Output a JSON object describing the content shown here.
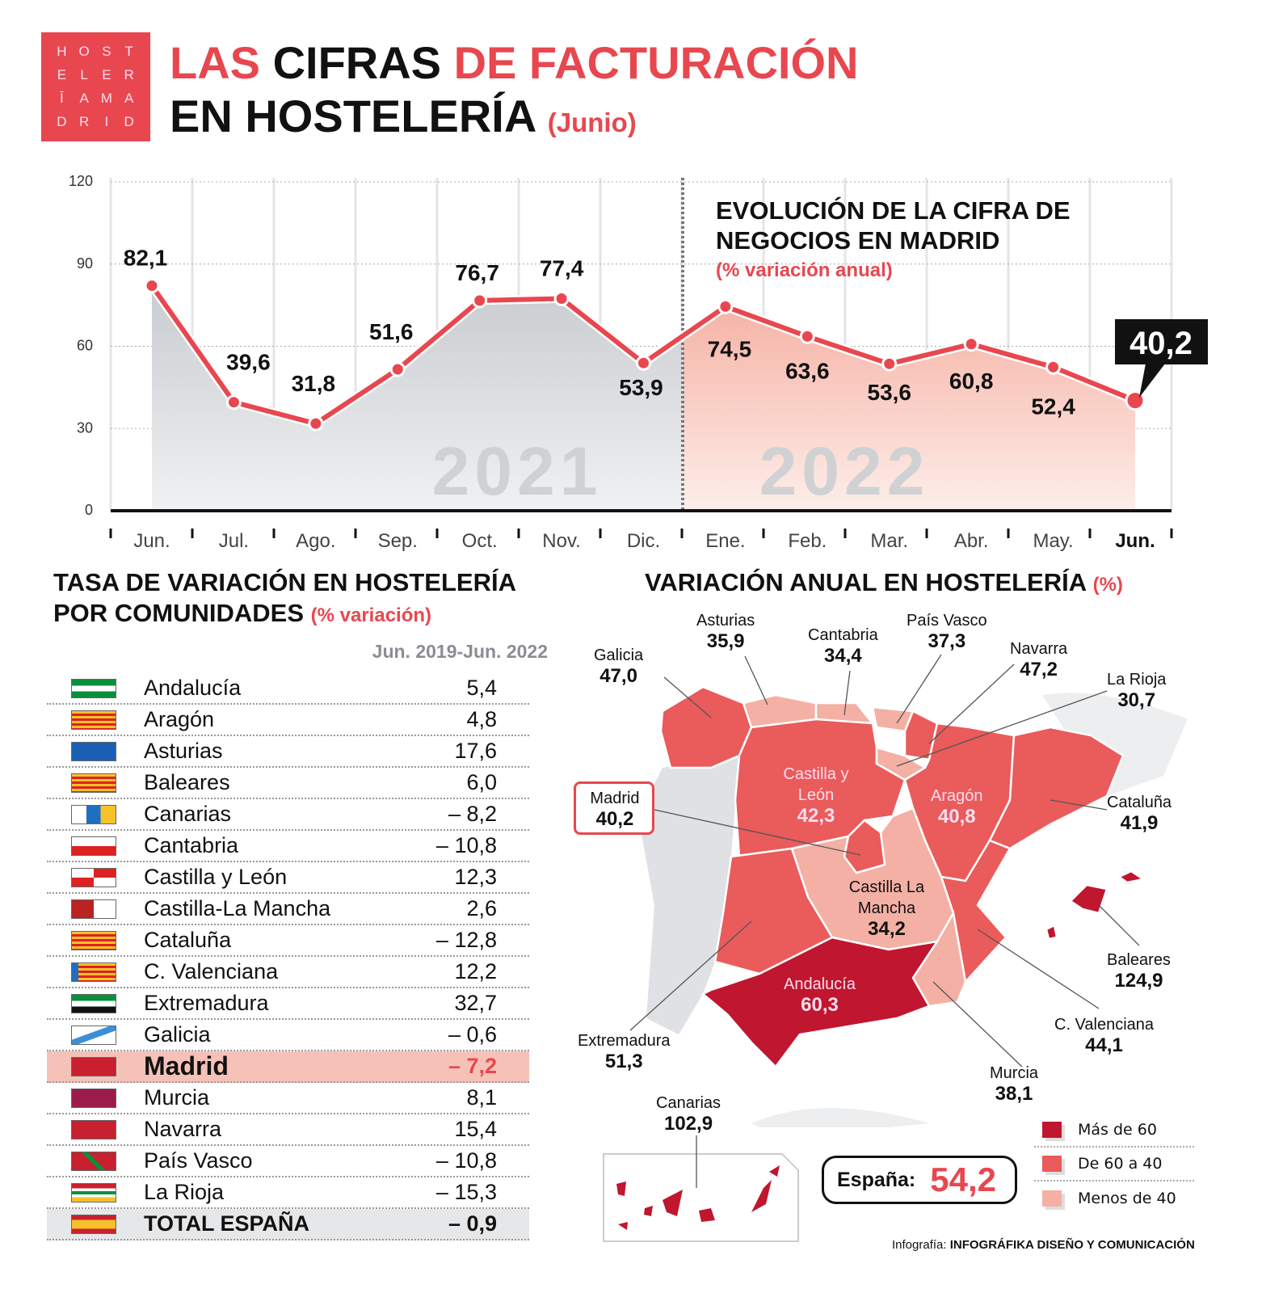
{
  "logo": {
    "text": [
      "H",
      "O",
      "S",
      "T",
      "E",
      "L",
      "E",
      "R",
      "Ī",
      "A",
      "M",
      "A",
      "D",
      "R",
      "I",
      "D"
    ]
  },
  "title": {
    "w1": "LAS",
    "w2": "CIFRAS",
    "w3": "DE FACTURACIÓN",
    "w4": "EN HOSTELERÍA",
    "w5": "(Junio)"
  },
  "chart_data": {
    "type": "line",
    "title": "EVOLUCIÓN DE LA CIFRA DE NEGOCIOS EN MADRID",
    "subtitle": "(% variación anual)",
    "categories": [
      "Jun.",
      "Jul.",
      "Ago.",
      "Sep.",
      "Oct.",
      "Nov.",
      "Dic.",
      "Ene.",
      "Feb.",
      "Mar.",
      "Abr.",
      "May.",
      "Jun."
    ],
    "values": [
      82.1,
      39.6,
      31.8,
      51.6,
      76.7,
      77.4,
      53.9,
      74.5,
      63.6,
      53.6,
      60.8,
      52.4,
      40.2
    ],
    "labels": [
      "82,1",
      "39,6",
      "31,8",
      "51,6",
      "76,7",
      "77,4",
      "53,9",
      "74,5",
      "63,6",
      "53,6",
      "60,8",
      "52,4",
      "40,2"
    ],
    "year_labels": [
      "2021",
      "2022"
    ],
    "yticks": [
      0,
      30,
      60,
      90,
      120
    ],
    "ylim": [
      0,
      120
    ],
    "grid": true,
    "colors": {
      "line": "#e8474f",
      "area2021": "#c9ccd0",
      "area2022": "#f6b3a6"
    }
  },
  "table": {
    "title1": "TASA DE VARIACIÓN EN HOSTELERÍA",
    "title2": "POR COMUNIDADES",
    "title_sub": "(% variación)",
    "col_header": "Jun. 2019-Jun. 2022",
    "rows": [
      {
        "name": "Andalucía",
        "value": "5,4"
      },
      {
        "name": "Aragón",
        "value": "4,8"
      },
      {
        "name": "Asturias",
        "value": "17,6"
      },
      {
        "name": "Baleares",
        "value": "6,0"
      },
      {
        "name": "Canarias",
        "value": "– 8,2"
      },
      {
        "name": "Cantabria",
        "value": "– 10,8"
      },
      {
        "name": "Castilla y León",
        "value": "12,3"
      },
      {
        "name": "Castilla-La Mancha",
        "value": "2,6"
      },
      {
        "name": "Cataluña",
        "value": "– 12,8"
      },
      {
        "name": "C. Valenciana",
        "value": "12,2"
      },
      {
        "name": "Extremadura",
        "value": "32,7"
      },
      {
        "name": "Galicia",
        "value": "– 0,6"
      },
      {
        "name": "Madrid",
        "value": "– 7,2"
      },
      {
        "name": "Murcia",
        "value": "8,1"
      },
      {
        "name": "Navarra",
        "value": "15,4"
      },
      {
        "name": "País Vasco",
        "value": "– 10,8"
      },
      {
        "name": "La Rioja",
        "value": "– 15,3"
      },
      {
        "name": "TOTAL ESPAÑA",
        "value": "– 0,9"
      }
    ]
  },
  "map": {
    "title": "VARIACIÓN ANUAL EN HOSTELERÍA",
    "title_sub": "(%)",
    "regions": {
      "galicia": {
        "name": "Galicia",
        "value": "47,0"
      },
      "asturias": {
        "name": "Asturias",
        "value": "35,9"
      },
      "cantabria": {
        "name": "Cantabria",
        "value": "34,4"
      },
      "pvasco": {
        "name": "País Vasco",
        "value": "37,3"
      },
      "navarra": {
        "name": "Navarra",
        "value": "47,2"
      },
      "rioja": {
        "name": "La Rioja",
        "value": "30,7"
      },
      "cyl": {
        "name": "Castilla y León",
        "value": "42,3"
      },
      "aragon": {
        "name": "Aragón",
        "value": "40,8"
      },
      "cataluna": {
        "name": "Cataluña",
        "value": "41,9"
      },
      "madrid": {
        "name": "Madrid",
        "value": "40,2"
      },
      "clm": {
        "name": "Castilla La Mancha",
        "value": "34,2"
      },
      "extremadura": {
        "name": "Extremadura",
        "value": "51,3"
      },
      "andalucia": {
        "name": "Andalucía",
        "value": "60,3"
      },
      "murcia": {
        "name": "Murcia",
        "value": "38,1"
      },
      "valenciana": {
        "name": "C. Valenciana",
        "value": "44,1"
      },
      "baleares": {
        "name": "Baleares",
        "value": "124,9"
      },
      "canarias": {
        "name": "Canarias",
        "value": "102,9"
      }
    },
    "espana_label": "España:",
    "espana_value": "54,2",
    "legend": [
      {
        "label": "Más de 60",
        "color": "#c0162f"
      },
      {
        "label": "De 60 a 40",
        "color": "#ea5b5b"
      },
      {
        "label": "Menos de 40",
        "color": "#f4b0a4"
      }
    ]
  },
  "credit": {
    "prefix": "Infografía:",
    "name": "INFOGRÁFIKA DISEÑO Y COMUNICACIÓN"
  }
}
